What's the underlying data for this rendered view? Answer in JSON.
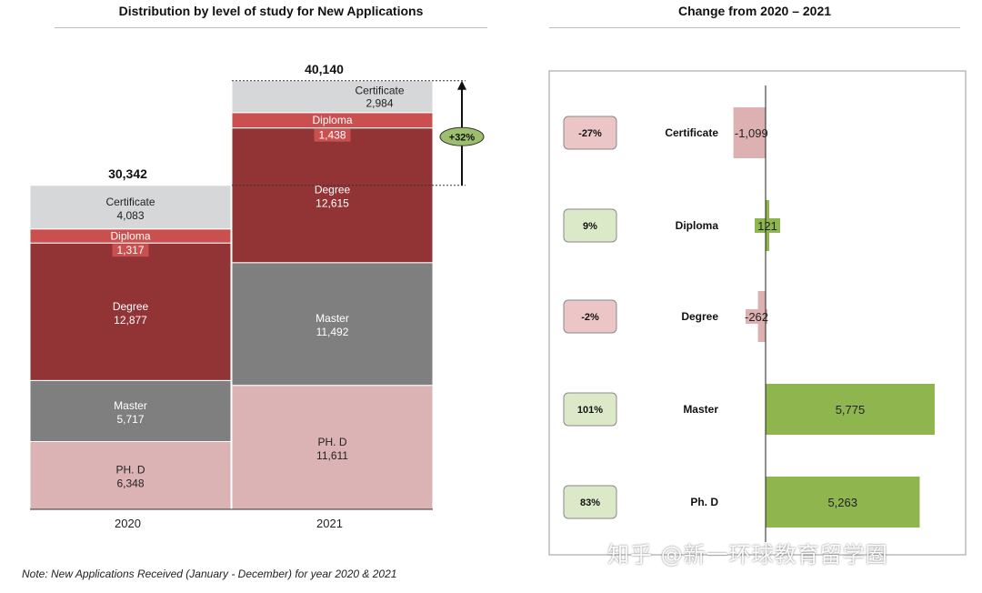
{
  "left": {
    "title": "Distribution by level of study for New Applications",
    "note": "Note: New Applications Received (January - December) for year 2020 & 2021"
  },
  "right": {
    "title": "Change from  2020 – 2021"
  },
  "watermark": "知乎 @新一环球教育留学圈",
  "colors": {
    "certificate": "#d5d7d8",
    "diploma": "#c9504f",
    "degree": "#923436",
    "master": "#7f7f7f",
    "phd": "#dcb3b4",
    "pos_bar": "#8fb54f",
    "neg_bar": "#ddb0b2",
    "pos_badge": "#dce9c9",
    "neg_badge": "#ecc6c7",
    "growth_badge": "#9dbe6d"
  },
  "chart_data": [
    {
      "type": "bar",
      "stacked": true,
      "title": "Distribution by level of study for New Applications",
      "categories": [
        "2020",
        "2021"
      ],
      "totals": [
        "30,342",
        "40,140"
      ],
      "growth_label": "+32%",
      "series": [
        {
          "name": "PH. D",
          "values": [
            6348,
            11611
          ],
          "labels": [
            "6,348",
            "11,611"
          ]
        },
        {
          "name": "Master",
          "values": [
            5717,
            11492
          ],
          "labels": [
            "5,717",
            "11,492"
          ]
        },
        {
          "name": "Degree",
          "values": [
            12877,
            12615
          ],
          "labels": [
            "12,877",
            "12,615"
          ]
        },
        {
          "name": "Diploma",
          "values": [
            1317,
            1438
          ],
          "labels": [
            "1,317",
            "1,438"
          ]
        },
        {
          "name": "Certificate",
          "values": [
            4083,
            2984
          ],
          "labels": [
            "4,083",
            "2,984"
          ]
        }
      ]
    },
    {
      "type": "bar",
      "orientation": "horizontal",
      "title": "Change from  2020 – 2021",
      "categories": [
        "Certificate",
        "Diploma",
        "Degree",
        "Master",
        "Ph. D"
      ],
      "values": [
        -1099,
        121,
        -262,
        5775,
        5263
      ],
      "value_labels": [
        "-1,099",
        "121",
        "-262",
        "5,775",
        "5,263"
      ],
      "percent_labels": [
        "-27%",
        "9%",
        "-2%",
        "101%",
        "83%"
      ]
    }
  ]
}
